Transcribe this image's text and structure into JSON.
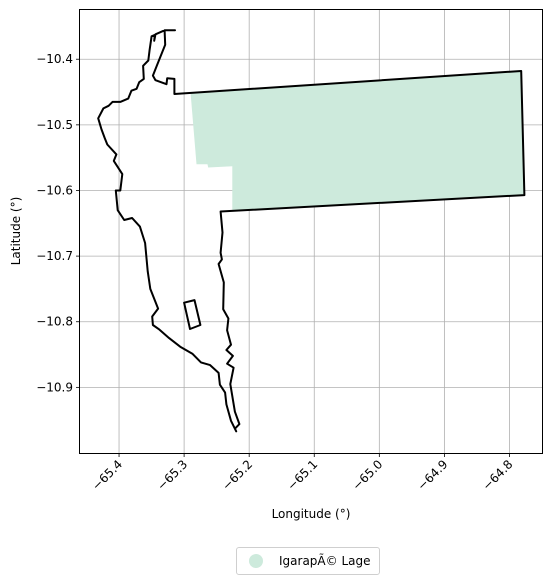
{
  "chart_data": {
    "type": "map",
    "xlabel": "Longitude (°)",
    "ylabel": "Latitude (°)",
    "xlim": [
      -65.46,
      -64.75
    ],
    "ylim": [
      -11.0,
      -10.325
    ],
    "grid": true,
    "x_ticks": [
      -65.4,
      -65.3,
      -65.2,
      -65.1,
      -65.0,
      -64.9,
      -64.8
    ],
    "x_tick_labels": [
      "−65.4",
      "−65.3",
      "−65.2",
      "−65.1",
      "−65.0",
      "−64.9",
      "−64.8"
    ],
    "y_ticks": [
      -10.4,
      -10.5,
      -10.6,
      -10.7,
      -10.8,
      -10.9
    ],
    "y_tick_labels": [
      "−10.4",
      "−10.5",
      "−10.6",
      "−10.7",
      "−10.8",
      "−10.9"
    ],
    "legend": {
      "placement": "bottom-center",
      "entries": [
        {
          "label": "IgarapÃ© Lage",
          "color": "#cdeadc"
        }
      ]
    },
    "layers": [
      {
        "name": "IgarapÃ© Lage",
        "kind": "filled-area",
        "color": "#cdeadc",
        "coordinates": [
          [
            -65.29,
            -10.452
          ],
          [
            -64.782,
            -10.418
          ],
          [
            -64.777,
            -10.607
          ],
          [
            -65.226,
            -10.631
          ],
          [
            -65.226,
            -10.563
          ],
          [
            -65.263,
            -10.565
          ],
          [
            -65.264,
            -10.56
          ],
          [
            -65.281,
            -10.56
          ],
          [
            -65.29,
            -10.452
          ]
        ]
      },
      {
        "name": "boundary",
        "kind": "outline",
        "color": "#000000",
        "coordinates": [
          [
            -65.314,
            -10.356
          ],
          [
            -65.33,
            -10.356
          ],
          [
            -65.329,
            -10.378
          ],
          [
            -65.342,
            -10.41
          ],
          [
            -65.348,
            -10.425
          ],
          [
            -65.344,
            -10.432
          ],
          [
            -65.327,
            -10.438
          ],
          [
            -65.326,
            -10.429
          ],
          [
            -65.315,
            -10.43
          ],
          [
            -65.315,
            -10.453
          ],
          [
            -64.782,
            -10.418
          ],
          [
            -64.777,
            -10.607
          ],
          [
            -65.244,
            -10.632
          ],
          [
            -65.241,
            -10.664
          ],
          [
            -65.244,
            -10.695
          ],
          [
            -65.242,
            -10.705
          ],
          [
            -65.247,
            -10.712
          ],
          [
            -65.239,
            -10.74
          ],
          [
            -65.24,
            -10.781
          ],
          [
            -65.232,
            -10.795
          ],
          [
            -65.234,
            -10.813
          ],
          [
            -65.228,
            -10.835
          ],
          [
            -65.235,
            -10.843
          ],
          [
            -65.225,
            -10.852
          ],
          [
            -65.234,
            -10.864
          ],
          [
            -65.224,
            -10.87
          ],
          [
            -65.229,
            -10.895
          ],
          [
            -65.222,
            -10.937
          ],
          [
            -65.215,
            -10.956
          ],
          [
            -65.222,
            -10.963
          ],
          [
            -65.22,
            -10.967
          ],
          [
            -65.228,
            -10.951
          ],
          [
            -65.235,
            -10.926
          ],
          [
            -65.237,
            -10.908
          ],
          [
            -65.245,
            -10.896
          ],
          [
            -65.247,
            -10.878
          ],
          [
            -65.26,
            -10.866
          ],
          [
            -65.274,
            -10.862
          ],
          [
            -65.287,
            -10.849
          ],
          [
            -65.306,
            -10.838
          ],
          [
            -65.323,
            -10.825
          ],
          [
            -65.338,
            -10.812
          ],
          [
            -65.348,
            -10.805
          ],
          [
            -65.349,
            -10.792
          ],
          [
            -65.34,
            -10.78
          ],
          [
            -65.352,
            -10.75
          ],
          [
            -65.356,
            -10.723
          ],
          [
            -65.36,
            -10.68
          ],
          [
            -65.368,
            -10.655
          ],
          [
            -65.38,
            -10.642
          ],
          [
            -65.392,
            -10.645
          ],
          [
            -65.402,
            -10.63
          ],
          [
            -65.405,
            -10.6
          ],
          [
            -65.398,
            -10.6
          ],
          [
            -65.395,
            -10.575
          ],
          [
            -65.408,
            -10.555
          ],
          [
            -65.404,
            -10.545
          ],
          [
            -65.418,
            -10.53
          ],
          [
            -65.422,
            -10.52
          ],
          [
            -65.427,
            -10.507
          ],
          [
            -65.432,
            -10.49
          ],
          [
            -65.424,
            -10.475
          ],
          [
            -65.416,
            -10.471
          ],
          [
            -65.41,
            -10.465
          ],
          [
            -65.398,
            -10.465
          ],
          [
            -65.386,
            -10.46
          ],
          [
            -65.381,
            -10.448
          ],
          [
            -65.373,
            -10.445
          ],
          [
            -65.369,
            -10.435
          ],
          [
            -65.362,
            -10.43
          ],
          [
            -65.363,
            -10.41
          ],
          [
            -65.355,
            -10.402
          ],
          [
            -65.353,
            -10.386
          ],
          [
            -65.35,
            -10.365
          ],
          [
            -65.345,
            -10.363
          ],
          [
            -65.346,
            -10.372
          ],
          [
            -65.344,
            -10.362
          ],
          [
            -65.33,
            -10.356
          ],
          [
            -65.314,
            -10.356
          ]
        ]
      },
      {
        "name": "inner-boundary",
        "kind": "outline",
        "color": "#000000",
        "coordinates": [
          [
            -65.3,
            -10.771
          ],
          [
            -65.284,
            -10.767
          ],
          [
            -65.275,
            -10.805
          ],
          [
            -65.291,
            -10.811
          ],
          [
            -65.3,
            -10.771
          ]
        ]
      }
    ]
  }
}
